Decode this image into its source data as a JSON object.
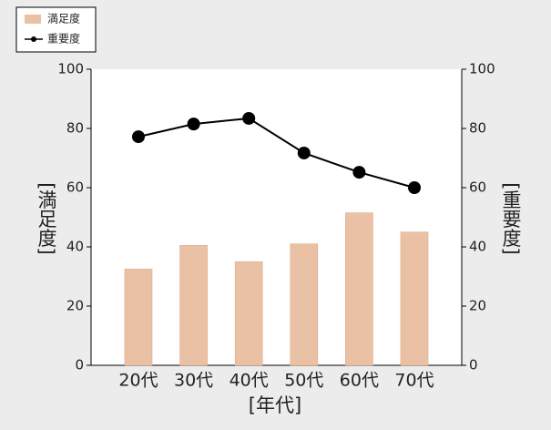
{
  "chart_data": {
    "type": "bar_line",
    "categories": [
      "20代",
      "30代",
      "40代",
      "50代",
      "60代",
      "70代"
    ],
    "series": [
      {
        "name": "満足度",
        "type": "bar",
        "color": "#ebc1a6",
        "values": [
          32.5,
          40.5,
          35,
          41,
          51.5,
          45
        ]
      },
      {
        "name": "重要度",
        "type": "line",
        "axis": "y2",
        "color": "#000000",
        "values": [
          77.2,
          81.5,
          83.4,
          71.7,
          65.2,
          60
        ]
      }
    ],
    "x_label": "[年代]",
    "y_label": "[満足度]",
    "y2_label": "[重要度]",
    "ylim": [
      0,
      100
    ],
    "yticks": [
      0,
      20,
      40,
      60,
      80,
      100
    ],
    "y2lim": [
      0,
      100
    ],
    "y2ticks": [
      0,
      20,
      40,
      60,
      80,
      100
    ],
    "legend": "upper left",
    "grid": false
  }
}
